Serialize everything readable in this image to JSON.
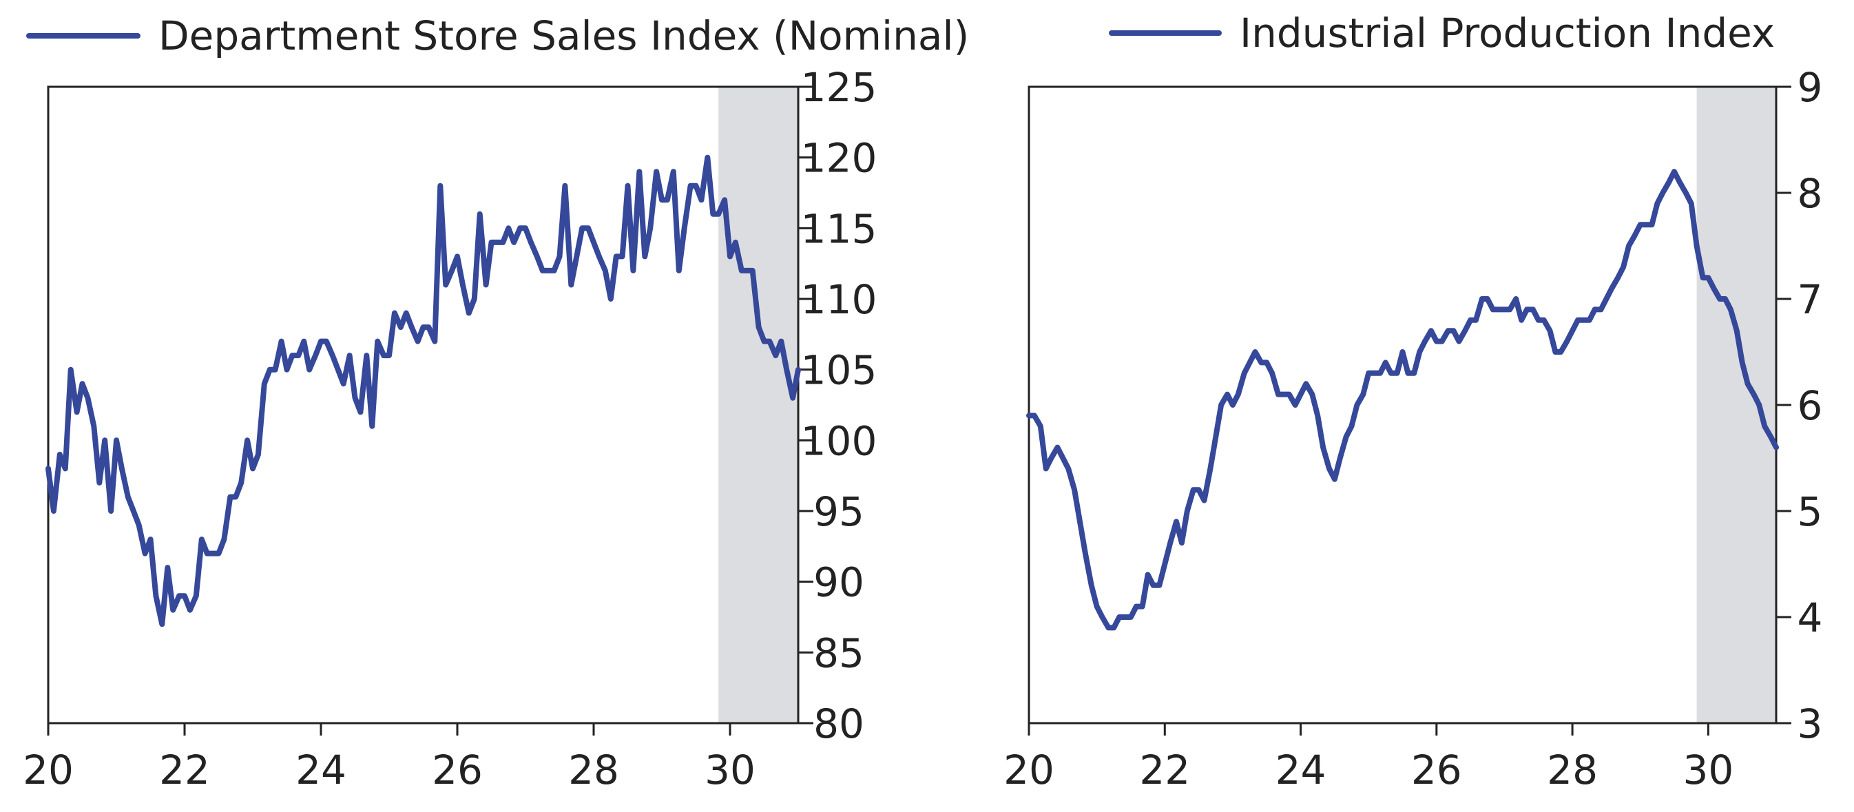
{
  "colors": {
    "series": "#36489a",
    "shade": "#dcdde0",
    "axis": "#222222"
  },
  "chart_data": [
    {
      "type": "line",
      "legend": "top-left",
      "grid": false,
      "xlim": [
        20,
        31
      ],
      "ylim": [
        80,
        125
      ],
      "x_ticks": [
        "20",
        "22",
        "24",
        "26",
        "28",
        "30"
      ],
      "y_ticks": [
        "80",
        "85",
        "90",
        "95",
        "100",
        "105",
        "110",
        "115",
        "120",
        "125"
      ],
      "y_axis_side": "right",
      "shaded_region": [
        29.83,
        31
      ],
      "series": [
        {
          "name": "Department Store Sales Index (Nominal)",
          "x": [
            20.0,
            20.08,
            20.17,
            20.25,
            20.33,
            20.42,
            20.5,
            20.58,
            20.67,
            20.75,
            20.83,
            20.92,
            21.0,
            21.08,
            21.17,
            21.25,
            21.33,
            21.42,
            21.5,
            21.58,
            21.67,
            21.75,
            21.83,
            21.92,
            22.0,
            22.08,
            22.17,
            22.25,
            22.33,
            22.42,
            22.5,
            22.58,
            22.67,
            22.75,
            22.83,
            22.92,
            23.0,
            23.08,
            23.17,
            23.25,
            23.33,
            23.42,
            23.5,
            23.58,
            23.67,
            23.75,
            23.83,
            23.92,
            24.0,
            24.08,
            24.17,
            24.25,
            24.33,
            24.42,
            24.5,
            24.58,
            24.67,
            24.75,
            24.83,
            24.92,
            25.0,
            25.08,
            25.17,
            25.25,
            25.33,
            25.42,
            25.5,
            25.58,
            25.67,
            25.75,
            25.83,
            25.92,
            26.0,
            26.08,
            26.17,
            26.25,
            26.33,
            26.42,
            26.5,
            26.58,
            26.67,
            26.75,
            26.83,
            26.92,
            27.0,
            27.08,
            27.17,
            27.25,
            27.33,
            27.42,
            27.5,
            27.58,
            27.67,
            27.75,
            27.83,
            27.92,
            28.0,
            28.08,
            28.17,
            28.25,
            28.33,
            28.42,
            28.5,
            28.58,
            28.67,
            28.75,
            28.83,
            28.92,
            29.0,
            29.08,
            29.17,
            29.25,
            29.33,
            29.42,
            29.5,
            29.58,
            29.67,
            29.75,
            29.83,
            29.92,
            30.0,
            30.08,
            30.17,
            30.25,
            30.33,
            30.42,
            30.5,
            30.58,
            30.67,
            30.75,
            30.83,
            30.92,
            31.0
          ],
          "y": [
            98,
            95,
            99,
            98,
            105,
            102,
            104,
            103,
            101,
            97,
            100,
            95,
            100,
            98,
            96,
            95,
            94,
            92,
            93,
            89,
            87,
            91,
            88,
            89,
            89,
            88,
            89,
            93,
            92,
            92,
            92,
            93,
            96,
            96,
            97,
            100,
            98,
            99,
            104,
            105,
            105,
            107,
            105,
            106,
            106,
            107,
            105,
            106,
            107,
            107,
            106,
            105,
            104,
            106,
            103,
            102,
            106,
            101,
            107,
            106,
            106,
            109,
            108,
            109,
            108,
            107,
            108,
            108,
            107,
            118,
            111,
            112,
            113,
            111,
            109,
            110,
            116,
            111,
            114,
            114,
            114,
            115,
            114,
            115,
            115,
            114,
            113,
            112,
            112,
            112,
            113,
            118,
            111,
            113,
            115,
            115,
            114,
            113,
            112,
            110,
            113,
            113,
            118,
            112,
            119,
            113,
            115,
            119,
            117,
            117,
            119,
            112,
            115,
            118,
            118,
            117,
            120,
            116,
            116,
            117,
            113,
            114,
            112,
            112,
            112,
            108,
            107,
            107,
            106,
            107,
            105,
            103,
            105
          ]
        }
      ]
    },
    {
      "type": "line",
      "legend": "top-left",
      "grid": false,
      "xlim": [
        20,
        31
      ],
      "ylim": [
        3,
        9
      ],
      "x_ticks": [
        "20",
        "22",
        "24",
        "26",
        "28",
        "30"
      ],
      "y_ticks": [
        "3",
        "4",
        "5",
        "6",
        "7",
        "8",
        "9"
      ],
      "y_axis_side": "right",
      "shaded_region": [
        29.83,
        31
      ],
      "series": [
        {
          "name": "Industrial Production Index",
          "x": [
            20.0,
            20.08,
            20.17,
            20.25,
            20.33,
            20.42,
            20.5,
            20.58,
            20.67,
            20.75,
            20.83,
            20.92,
            21.0,
            21.08,
            21.17,
            21.25,
            21.33,
            21.42,
            21.5,
            21.58,
            21.67,
            21.75,
            21.83,
            21.92,
            22.0,
            22.08,
            22.17,
            22.25,
            22.33,
            22.42,
            22.5,
            22.58,
            22.67,
            22.75,
            22.83,
            22.92,
            23.0,
            23.08,
            23.17,
            23.25,
            23.33,
            23.42,
            23.5,
            23.58,
            23.67,
            23.75,
            23.83,
            23.92,
            24.0,
            24.08,
            24.17,
            24.25,
            24.33,
            24.42,
            24.5,
            24.58,
            24.67,
            24.75,
            24.83,
            24.92,
            25.0,
            25.08,
            25.17,
            25.25,
            25.33,
            25.42,
            25.5,
            25.58,
            25.67,
            25.75,
            25.83,
            25.92,
            26.0,
            26.08,
            26.17,
            26.25,
            26.33,
            26.42,
            26.5,
            26.58,
            26.67,
            26.75,
            26.83,
            26.92,
            27.0,
            27.08,
            27.17,
            27.25,
            27.33,
            27.42,
            27.5,
            27.58,
            27.67,
            27.75,
            27.83,
            27.92,
            28.0,
            28.08,
            28.17,
            28.25,
            28.33,
            28.42,
            28.5,
            28.58,
            28.67,
            28.75,
            28.83,
            28.92,
            29.0,
            29.08,
            29.17,
            29.25,
            29.33,
            29.42,
            29.5,
            29.58,
            29.67,
            29.75,
            29.83,
            29.92,
            30.0,
            30.08,
            30.17,
            30.25,
            30.33,
            30.42,
            30.5,
            30.58,
            30.67,
            30.75,
            30.83,
            30.92,
            31.0
          ],
          "y": [
            5.9,
            5.9,
            5.8,
            5.4,
            5.5,
            5.6,
            5.5,
            5.4,
            5.2,
            4.9,
            4.6,
            4.3,
            4.1,
            4.0,
            3.9,
            3.9,
            4.0,
            4.0,
            4.0,
            4.1,
            4.1,
            4.4,
            4.3,
            4.3,
            4.5,
            4.7,
            4.9,
            4.7,
            5.0,
            5.2,
            5.2,
            5.1,
            5.4,
            5.7,
            6.0,
            6.1,
            6.0,
            6.1,
            6.3,
            6.4,
            6.5,
            6.4,
            6.4,
            6.3,
            6.1,
            6.1,
            6.1,
            6.0,
            6.1,
            6.2,
            6.1,
            5.9,
            5.6,
            5.4,
            5.3,
            5.5,
            5.7,
            5.8,
            6.0,
            6.1,
            6.3,
            6.3,
            6.3,
            6.4,
            6.3,
            6.3,
            6.5,
            6.3,
            6.3,
            6.5,
            6.6,
            6.7,
            6.6,
            6.6,
            6.7,
            6.7,
            6.6,
            6.7,
            6.8,
            6.8,
            7.0,
            7.0,
            6.9,
            6.9,
            6.9,
            6.9,
            7.0,
            6.8,
            6.9,
            6.9,
            6.8,
            6.8,
            6.7,
            6.5,
            6.5,
            6.6,
            6.7,
            6.8,
            6.8,
            6.8,
            6.9,
            6.9,
            7.0,
            7.1,
            7.2,
            7.3,
            7.5,
            7.6,
            7.7,
            7.7,
            7.7,
            7.9,
            8.0,
            8.1,
            8.2,
            8.1,
            8.0,
            7.9,
            7.5,
            7.2,
            7.2,
            7.1,
            7.0,
            7.0,
            6.9,
            6.7,
            6.4,
            6.2,
            6.1,
            6.0,
            5.8,
            5.7,
            5.6
          ]
        }
      ]
    }
  ]
}
